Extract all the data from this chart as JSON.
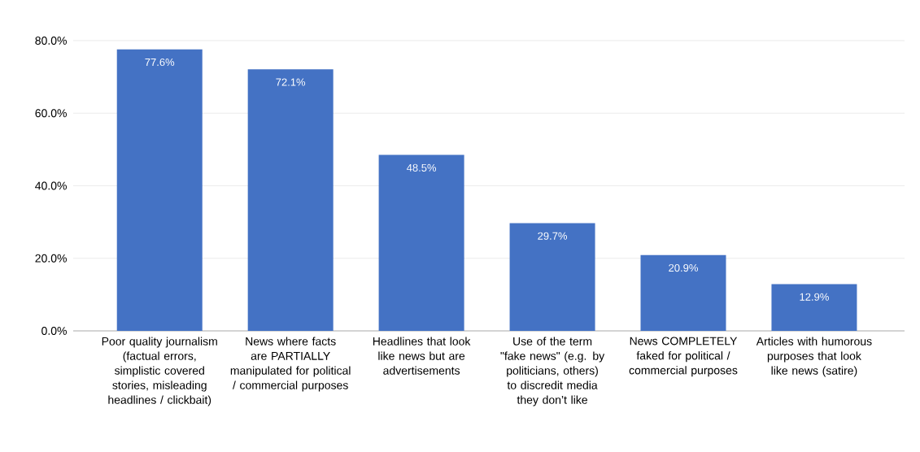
{
  "chart_data": {
    "type": "bar",
    "categories": [
      "Poor quality journalism (factual errors, simplistic covered stories, misleading headlines / clickbait)",
      "News where facts are PARTIALLY manipulated for political / commercial purposes",
      "Headlines that look like news but are advertisements",
      "Use of the term \"fake news\" (e.g. by politicians, others) to discredit media they don’t like",
      "News COMPLETELY faked for political / commercial purposes",
      "Articles with humorous purposes that look like news (satire)"
    ],
    "values": [
      77.6,
      72.1,
      48.5,
      29.7,
      20.9,
      12.9
    ],
    "value_labels": [
      "77.6%",
      "72.1%",
      "48.5%",
      "29.7%",
      "20.9%",
      "12.9%"
    ],
    "color": "#4472c4",
    "ylim": [
      0,
      80
    ],
    "yticks": [
      {
        "value": 0,
        "label": "0.0%"
      },
      {
        "value": 20,
        "label": "20.0%"
      },
      {
        "value": 40,
        "label": "40.0%"
      },
      {
        "value": 60,
        "label": "60.0%"
      },
      {
        "value": 80,
        "label": "80.0%"
      }
    ],
    "grid": "y"
  }
}
